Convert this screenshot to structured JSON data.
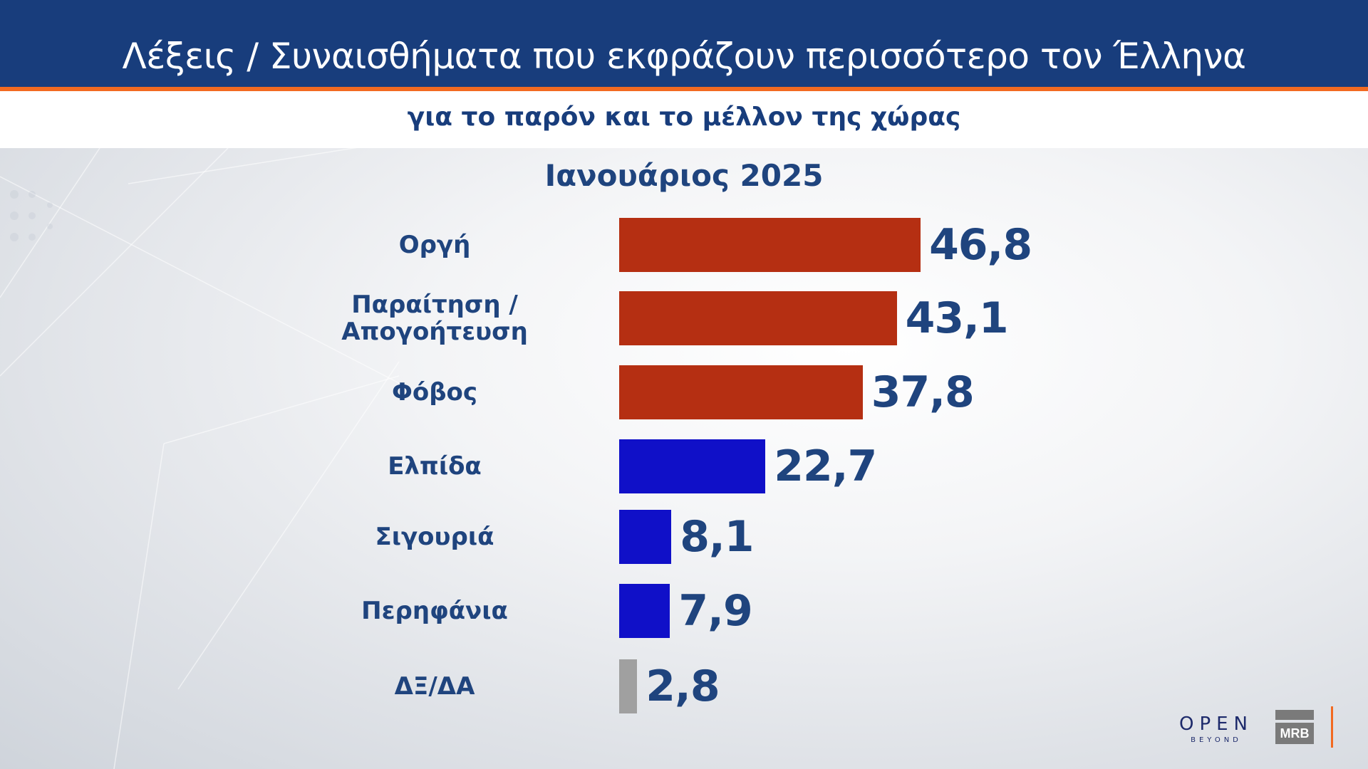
{
  "header": {
    "title": "Λέξεις / Συναισθήματα που εκφράζουν περισσότερο τον Έλληνα",
    "subtitle": "για το παρόν και το μέλλον της χώρας"
  },
  "colors": {
    "header_bg": "#183d7c",
    "accent_orange": "#f26a21",
    "text_navy": "#1f447e",
    "negative_bar": "#b52f12",
    "positive_bar": "#1010c8",
    "neutral_bar": "#a0a0a0"
  },
  "chart_data": {
    "type": "bar",
    "orientation": "horizontal",
    "title": "Λέξεις / Συναισθήματα που εκφράζουν περισσότερο τον Έλληνα",
    "subtitle": "για το παρόν και το μέλλον της χώρας",
    "period": "Ιανουάριος 2025",
    "xlabel": "",
    "ylabel": "",
    "grid": false,
    "legend": null,
    "unit": "%",
    "categories": [
      "Οργή",
      "Παραίτηση / Απογοήτευση",
      "Φόβος",
      "Ελπίδα",
      "Σιγουριά",
      "Περηφάνια",
      "ΔΞ/ΔΑ"
    ],
    "values": [
      46.8,
      43.1,
      37.8,
      22.7,
      8.1,
      7.9,
      2.8
    ],
    "bars": [
      {
        "label": "Οργή",
        "label_lines": [
          "Οργή"
        ],
        "value": 46.8,
        "value_text": "46,8",
        "color": "#b52f12"
      },
      {
        "label": "Παραίτηση / Απογοήτευση",
        "label_lines": [
          "Παραίτηση /",
          "Απογοήτευση"
        ],
        "value": 43.1,
        "value_text": "43,1",
        "color": "#b52f12"
      },
      {
        "label": "Φόβος",
        "label_lines": [
          "Φόβος"
        ],
        "value": 37.8,
        "value_text": "37,8",
        "color": "#b52f12"
      },
      {
        "label": "Ελπίδα",
        "label_lines": [
          "Ελπίδα"
        ],
        "value": 22.7,
        "value_text": "22,7",
        "color": "#1010c8"
      },
      {
        "label": "Σιγουριά",
        "label_lines": [
          "Σιγουριά"
        ],
        "value": 8.1,
        "value_text": "8,1",
        "color": "#1010c8"
      },
      {
        "label": "Περηφάνια",
        "label_lines": [
          "Περηφάνια"
        ],
        "value": 7.9,
        "value_text": "7,9",
        "color": "#1010c8"
      },
      {
        "label": "ΔΞ/ΔΑ",
        "label_lines": [
          "ΔΞ/ΔΑ"
        ],
        "value": 2.8,
        "value_text": "2,8",
        "color": "#a0a0a0"
      }
    ]
  },
  "footer": {
    "logo_open": "OPEN",
    "logo_open_sub": "BEYOND",
    "logo_mrb": "MRB"
  }
}
